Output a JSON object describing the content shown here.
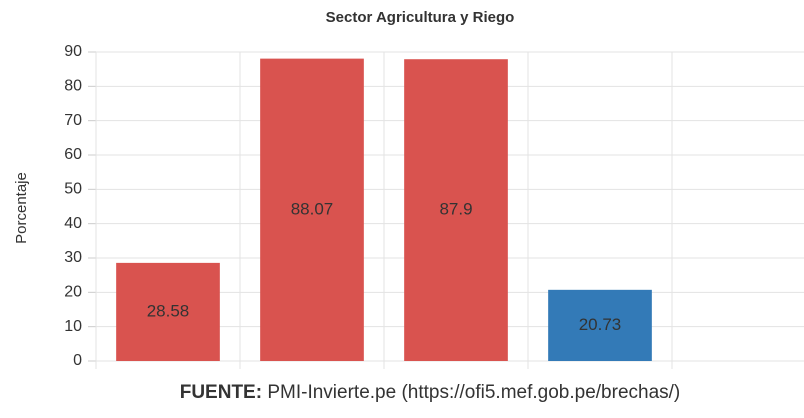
{
  "chart_data": {
    "type": "bar",
    "title": "Sector Agricultura y Riego",
    "ylabel": "Porcentaje",
    "categories": [
      null,
      null,
      null,
      null,
      null
    ],
    "values": [
      28.58,
      88.07,
      87.9,
      20.73,
      null
    ],
    "colors": [
      "#d9534f",
      "#d9534f",
      "#d9534f",
      "#337ab7",
      null
    ],
    "ylim": [
      0,
      90
    ],
    "yticks": [
      0,
      10,
      20,
      30,
      40,
      50,
      60,
      70,
      80,
      90
    ],
    "grid": true,
    "source_label": "FUENTE:",
    "source": "PMI-Invierte.pe (https://ofi5.mef.gob.pe/brechas/)"
  }
}
